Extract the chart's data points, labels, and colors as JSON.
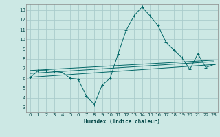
{
  "background_color": "#cce8e4",
  "grid_color": "#aacccc",
  "line_color": "#006666",
  "xlabel": "Humidex (Indice chaleur)",
  "xlim": [
    -0.5,
    23.5
  ],
  "ylim": [
    2.5,
    13.6
  ],
  "yticks": [
    3,
    4,
    5,
    6,
    7,
    8,
    9,
    10,
    11,
    12,
    13
  ],
  "xticks": [
    0,
    1,
    2,
    3,
    4,
    5,
    6,
    7,
    8,
    9,
    10,
    11,
    12,
    13,
    14,
    15,
    16,
    17,
    18,
    19,
    20,
    21,
    22,
    23
  ],
  "lines": [
    {
      "x": [
        0,
        1,
        2,
        3,
        4,
        5,
        6,
        7,
        8,
        9,
        10,
        11,
        12,
        13,
        14,
        15,
        16,
        17,
        18,
        19,
        20,
        21,
        22,
        23
      ],
      "y": [
        6.1,
        6.8,
        6.8,
        6.7,
        6.6,
        6.0,
        5.9,
        4.2,
        3.3,
        5.3,
        6.0,
        8.5,
        10.9,
        12.4,
        13.3,
        12.4,
        11.4,
        9.7,
        8.9,
        8.1,
        6.9,
        8.5,
        7.1,
        7.4
      ],
      "marker": true
    },
    {
      "x": [
        0,
        23
      ],
      "y": [
        6.1,
        7.4
      ],
      "marker": false
    },
    {
      "x": [
        0,
        23
      ],
      "y": [
        6.5,
        7.7
      ],
      "marker": false
    },
    {
      "x": [
        0,
        23
      ],
      "y": [
        6.8,
        7.85
      ],
      "marker": false
    }
  ]
}
